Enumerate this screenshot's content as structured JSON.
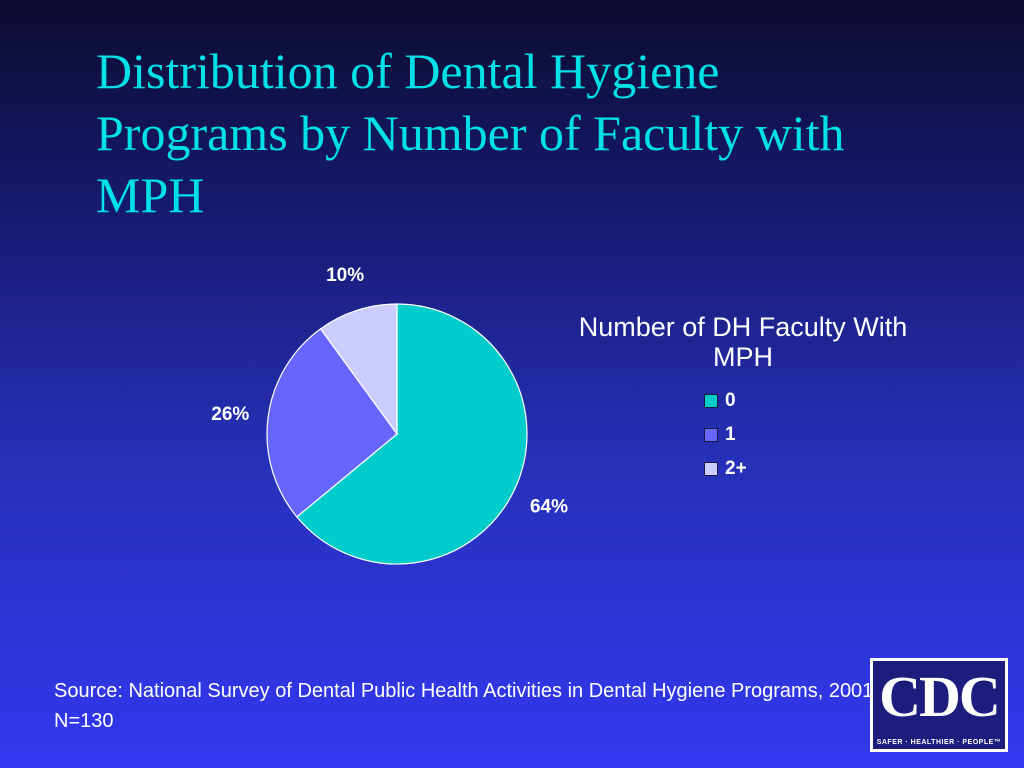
{
  "slide": {
    "title": "Distribution of Dental Hygiene Programs by Number of Faculty with MPH",
    "source": "Source: National Survey of Dental Public Health Activities in Dental Hygiene Programs, 2001. N=130"
  },
  "chart_data": {
    "type": "pie",
    "title": "",
    "legend_title": "Number of DH Faculty With MPH",
    "legend_position": "right",
    "categories": [
      "0",
      "1",
      "2+"
    ],
    "values": [
      64,
      26,
      10
    ],
    "labels": [
      "64%",
      "26%",
      "10%"
    ],
    "colors": [
      "#00cccc",
      "#6666ff",
      "#ccccff"
    ]
  },
  "logo": {
    "text": "CDC",
    "tagline": "SAFER · HEALTHIER · PEOPLE™"
  }
}
